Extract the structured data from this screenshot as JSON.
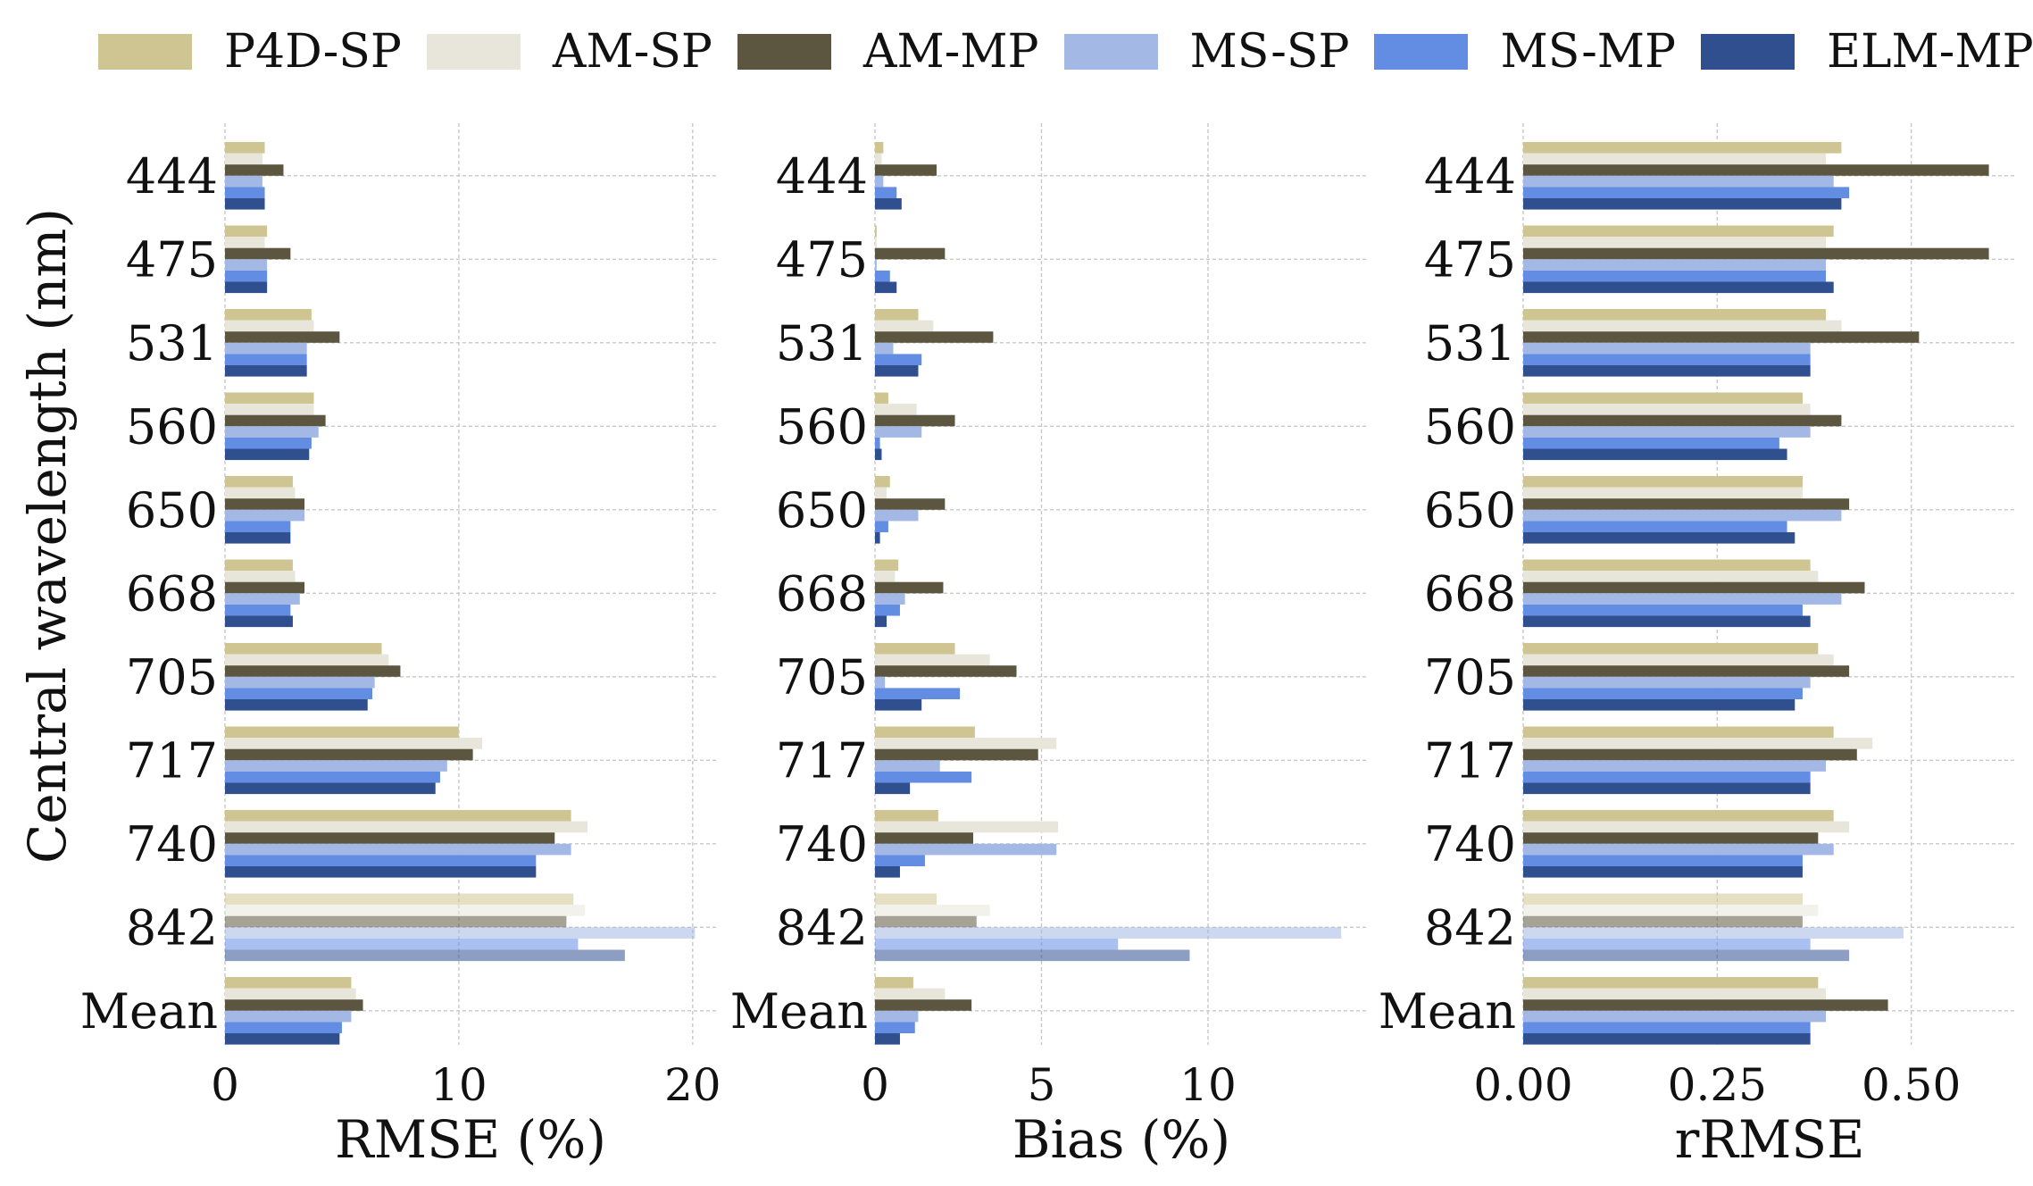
{
  "legend": [
    {
      "label": "P4D-SP",
      "color": "#cfc593"
    },
    {
      "label": "AM-SP",
      "color": "#e8e6da"
    },
    {
      "label": "AM-MP",
      "color": "#5c5640"
    },
    {
      "label": "MS-SP",
      "color": "#a3b8e4"
    },
    {
      "label": "MS-MP",
      "color": "#628de3"
    },
    {
      "label": "ELM-MP",
      "color": "#2f4f8f"
    }
  ],
  "y_axis_title": "Central wavelength (nm)",
  "chart_data": [
    {
      "type": "bar",
      "orientation": "horizontal",
      "xlabel": "RMSE (%)",
      "xlim": [
        0,
        21
      ],
      "xticks": [
        0,
        10,
        20
      ],
      "xtick_labels": [
        "0",
        "10",
        "20"
      ],
      "categories": [
        "444",
        "475",
        "531",
        "560",
        "650",
        "668",
        "705",
        "717",
        "740",
        "842",
        "Mean"
      ],
      "series": [
        {
          "name": "P4D-SP",
          "values": [
            1.7,
            1.8,
            3.7,
            3.8,
            2.9,
            2.9,
            6.7,
            10.0,
            14.8,
            14.9,
            5.4
          ]
        },
        {
          "name": "AM-SP",
          "values": [
            1.6,
            1.7,
            3.8,
            3.8,
            3.0,
            3.0,
            7.0,
            11.0,
            15.5,
            15.4,
            5.6
          ]
        },
        {
          "name": "AM-MP",
          "values": [
            2.5,
            2.8,
            4.9,
            4.3,
            3.4,
            3.4,
            7.5,
            10.6,
            14.1,
            14.6,
            5.9
          ]
        },
        {
          "name": "MS-SP",
          "values": [
            1.6,
            1.8,
            3.5,
            4.0,
            3.4,
            3.2,
            6.4,
            9.5,
            14.8,
            20.1,
            5.4
          ]
        },
        {
          "name": "MS-MP",
          "values": [
            1.7,
            1.8,
            3.5,
            3.7,
            2.8,
            2.8,
            6.3,
            9.2,
            13.3,
            15.1,
            5.0
          ]
        },
        {
          "name": "ELM-MP",
          "values": [
            1.7,
            1.8,
            3.5,
            3.6,
            2.8,
            2.9,
            6.1,
            9.0,
            13.3,
            17.1,
            4.9
          ]
        }
      ]
    },
    {
      "type": "bar",
      "orientation": "horizontal",
      "xlabel": "Bias (%)",
      "xlim": [
        0,
        14.8
      ],
      "xticks": [
        0,
        5,
        10
      ],
      "xtick_labels": [
        "0",
        "5",
        "10"
      ],
      "categories": [
        "444",
        "475",
        "531",
        "560",
        "650",
        "668",
        "705",
        "717",
        "740",
        "842",
        "Mean"
      ],
      "series": [
        {
          "name": "P4D-SP",
          "values": [
            0.25,
            0.05,
            1.3,
            0.4,
            0.45,
            0.7,
            2.4,
            3.0,
            1.9,
            1.85,
            1.15
          ]
        },
        {
          "name": "AM-SP",
          "values": [
            0.2,
            0.05,
            1.75,
            1.25,
            0.35,
            0.6,
            3.45,
            5.45,
            5.5,
            3.45,
            2.1
          ]
        },
        {
          "name": "AM-MP",
          "values": [
            1.85,
            2.1,
            3.55,
            2.4,
            2.1,
            2.05,
            4.25,
            4.9,
            2.95,
            3.05,
            2.9
          ]
        },
        {
          "name": "MS-SP",
          "values": [
            0.25,
            0.05,
            0.55,
            1.4,
            1.3,
            0.9,
            0.3,
            1.95,
            5.45,
            14.0,
            1.3
          ]
        },
        {
          "name": "MS-MP",
          "values": [
            0.65,
            0.45,
            1.4,
            0.15,
            0.4,
            0.75,
            2.55,
            2.9,
            1.5,
            7.3,
            1.2
          ]
        },
        {
          "name": "ELM-MP",
          "values": [
            0.8,
            0.65,
            1.3,
            0.2,
            0.15,
            0.35,
            1.4,
            1.05,
            0.75,
            9.45,
            0.75
          ]
        }
      ]
    },
    {
      "type": "bar",
      "orientation": "horizontal",
      "xlabel": "rRMSE",
      "xlim": [
        0,
        0.635
      ],
      "xticks": [
        0,
        0.25,
        0.5
      ],
      "xtick_labels": [
        "0.00",
        "0.25",
        "0.50"
      ],
      "categories": [
        "444",
        "475",
        "531",
        "560",
        "650",
        "668",
        "705",
        "717",
        "740",
        "842",
        "Mean"
      ],
      "series": [
        {
          "name": "P4D-SP",
          "values": [
            0.41,
            0.4,
            0.39,
            0.36,
            0.36,
            0.37,
            0.38,
            0.4,
            0.4,
            0.36,
            0.38
          ]
        },
        {
          "name": "AM-SP",
          "values": [
            0.39,
            0.39,
            0.41,
            0.37,
            0.36,
            0.38,
            0.4,
            0.45,
            0.42,
            0.38,
            0.39
          ]
        },
        {
          "name": "AM-MP",
          "values": [
            0.6,
            0.6,
            0.51,
            0.41,
            0.42,
            0.44,
            0.42,
            0.43,
            0.38,
            0.36,
            0.47
          ]
        },
        {
          "name": "MS-SP",
          "values": [
            0.4,
            0.39,
            0.37,
            0.37,
            0.41,
            0.41,
            0.37,
            0.39,
            0.4,
            0.49,
            0.39
          ]
        },
        {
          "name": "MS-MP",
          "values": [
            0.42,
            0.39,
            0.37,
            0.33,
            0.34,
            0.36,
            0.36,
            0.37,
            0.36,
            0.37,
            0.37
          ]
        },
        {
          "name": "ELM-MP",
          "values": [
            0.41,
            0.4,
            0.37,
            0.34,
            0.35,
            0.37,
            0.35,
            0.37,
            0.36,
            0.42,
            0.37
          ]
        }
      ]
    }
  ]
}
